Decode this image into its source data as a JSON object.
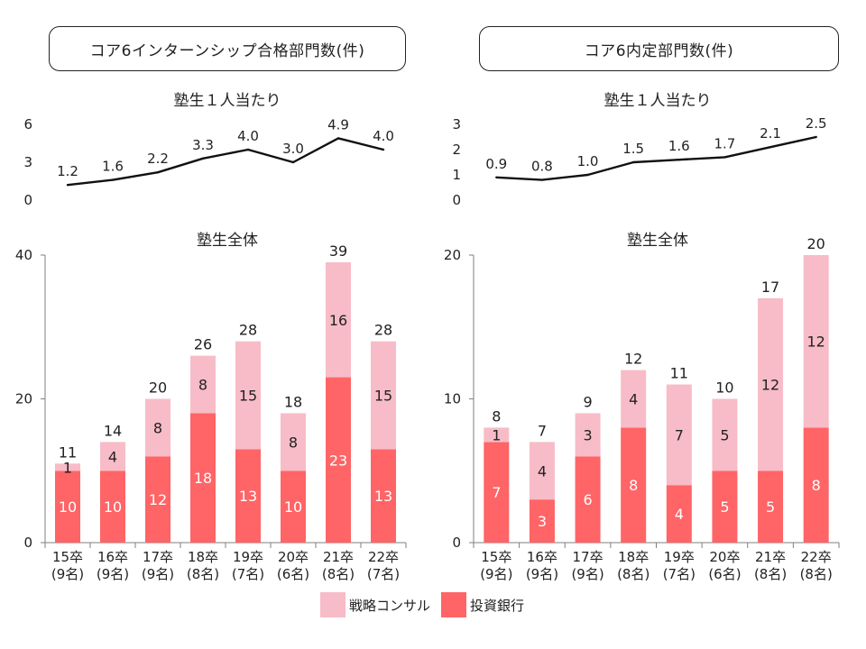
{
  "titles": {
    "left": "コア6インターンシップ合格部門数(件)",
    "right": "コア6内定部門数(件)"
  },
  "colors": {
    "line": "#111111",
    "consulting": "#f7bcc7",
    "investment_banking": "#ff6466",
    "axis": "#7f7f7f"
  },
  "legend": {
    "consulting": "戦略コンサル",
    "investment_banking": "投資銀行"
  },
  "chart_data": [
    {
      "id": "internship-per-student",
      "type": "line",
      "title": "塾生１人当たり",
      "categories": [
        "15卒",
        "16卒",
        "17卒",
        "18卒",
        "19卒",
        "20卒",
        "21卒",
        "22卒"
      ],
      "values": [
        1.2,
        1.6,
        2.2,
        3.3,
        4.0,
        3.0,
        4.9,
        4.0
      ],
      "value_labels": [
        "1.2",
        "1.6",
        "2.2",
        "3.3",
        "4.0",
        "3.0",
        "4.9",
        "4.0"
      ],
      "yticks": [
        "0",
        "3",
        "6"
      ],
      "ylim": [
        0,
        6
      ]
    },
    {
      "id": "offer-per-student",
      "type": "line",
      "title": "塾生１人当たり",
      "categories": [
        "15卒",
        "16卒",
        "17卒",
        "18卒",
        "19卒",
        "20卒",
        "21卒",
        "22卒"
      ],
      "values": [
        0.9,
        0.8,
        1.0,
        1.5,
        1.6,
        1.7,
        2.1,
        2.5
      ],
      "value_labels": [
        "0.9",
        "0.8",
        "1.0",
        "1.5",
        "1.6",
        "1.7",
        "2.1",
        "2.5"
      ],
      "yticks": [
        "0",
        "1",
        "2",
        "3"
      ],
      "ylim": [
        0,
        3
      ]
    },
    {
      "id": "internship-total",
      "type": "bar",
      "stacked": true,
      "title": "塾生全体",
      "categories": [
        "15卒",
        "16卒",
        "17卒",
        "18卒",
        "19卒",
        "20卒",
        "21卒",
        "22卒"
      ],
      "category_sublabels": [
        "(9名)",
        "(9名)",
        "(9名)",
        "(8名)",
        "(7名)",
        "(6名)",
        "(8名)",
        "(7名)"
      ],
      "series": [
        {
          "name": "投資銀行",
          "values": [
            10,
            10,
            12,
            18,
            13,
            10,
            23,
            13
          ]
        },
        {
          "name": "戦略コンサル",
          "values": [
            1,
            4,
            8,
            8,
            15,
            8,
            16,
            15
          ]
        }
      ],
      "totals": [
        11,
        14,
        20,
        26,
        28,
        18,
        39,
        28
      ],
      "yticks": [
        "0",
        "20",
        "40"
      ],
      "ylim": [
        0,
        40
      ]
    },
    {
      "id": "offer-total",
      "type": "bar",
      "stacked": true,
      "title": "塾生全体",
      "categories": [
        "15卒",
        "16卒",
        "17卒",
        "18卒",
        "19卒",
        "20卒",
        "21卒",
        "22卒"
      ],
      "category_sublabels": [
        "(9名)",
        "(9名)",
        "(9名)",
        "(8名)",
        "(7名)",
        "(6名)",
        "(8名)",
        "(8名)"
      ],
      "series": [
        {
          "name": "投資銀行",
          "values": [
            7,
            3,
            6,
            8,
            4,
            5,
            5,
            8
          ]
        },
        {
          "name": "戦略コンサル",
          "values": [
            1,
            4,
            3,
            4,
            7,
            5,
            12,
            12
          ]
        }
      ],
      "totals": [
        8,
        7,
        9,
        12,
        11,
        10,
        17,
        20
      ],
      "yticks": [
        "0",
        "10",
        "20"
      ],
      "ylim": [
        0,
        20
      ]
    }
  ]
}
